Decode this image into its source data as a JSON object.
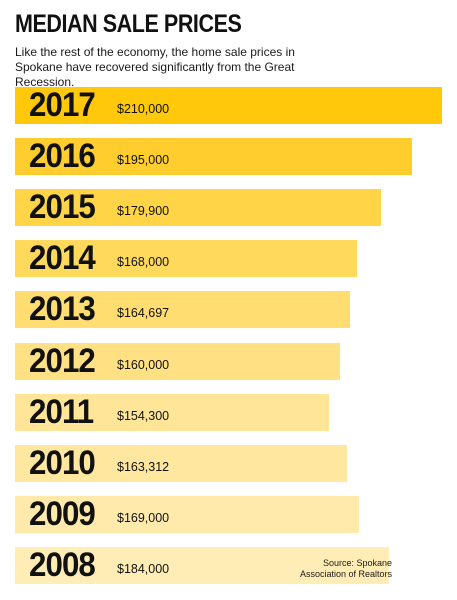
{
  "chart_data": {
    "type": "bar",
    "orientation": "horizontal",
    "title": "MEDIAN SALE PRICES",
    "subtitle": "Like the rest of the economy, the home sale prices in Spokane have recovered significantly from the Great Recession.",
    "categories": [
      "2017",
      "2016",
      "2015",
      "2014",
      "2013",
      "2012",
      "2011",
      "2010",
      "2009",
      "2008"
    ],
    "values": [
      210000,
      195000,
      179900,
      168000,
      164697,
      160000,
      154300,
      163312,
      169000,
      184000
    ],
    "value_labels": [
      "$210,000",
      "$195,000",
      "$179,900",
      "$168,000",
      "$164,697",
      "$160,000",
      "$154,300",
      "$163,312",
      "$169,000",
      "$184,000"
    ],
    "bar_colors": [
      "#ffc80a",
      "#ffcd2e",
      "#ffd447",
      "#ffd95c",
      "#ffdd71",
      "#ffe183",
      "#ffe597",
      "#ffe79f",
      "#ffeaab",
      "#ffedb5"
    ],
    "source": "Source: Spokane Association of Realtors"
  }
}
